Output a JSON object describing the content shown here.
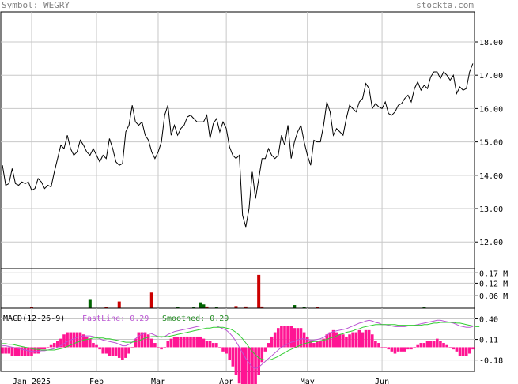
{
  "header": {
    "symbol_label": "Symbol: WEGRY",
    "site": "stockta.com"
  },
  "chart_data": [
    {
      "type": "line",
      "panel": "price",
      "ylim": [
        11.2,
        18.9
      ],
      "yticks": [
        "18.00",
        "17.00",
        "16.00",
        "15.00",
        "14.00",
        "13.00",
        "12.00"
      ],
      "ytick_values": [
        18,
        17,
        16,
        15,
        14,
        13,
        12
      ],
      "grid": true,
      "series": [
        {
          "values": [
            14.3,
            13.7,
            13.75,
            14.2,
            13.75,
            13.7,
            13.8,
            13.75,
            13.8,
            13.55,
            13.6,
            13.9,
            13.8,
            13.6,
            13.7,
            13.65,
            14.1,
            14.5,
            14.9,
            14.8,
            15.2,
            14.8,
            14.6,
            14.7,
            15.05,
            14.9,
            14.7,
            14.6,
            14.8,
            14.6,
            14.4,
            14.6,
            14.5,
            15.1,
            14.8,
            14.4,
            14.3,
            14.35,
            15.3,
            15.5,
            16.1,
            15.6,
            15.5,
            15.6,
            15.2,
            15.05,
            14.7,
            14.5,
            14.7,
            15.0,
            15.8,
            16.1,
            15.2,
            15.5,
            15.2,
            15.4,
            15.5,
            15.75,
            15.8,
            15.7,
            15.6,
            15.6,
            15.6,
            15.8,
            15.1,
            15.55,
            15.7,
            15.3,
            15.6,
            15.4,
            14.85,
            14.6,
            14.5,
            14.6,
            12.8,
            12.45,
            13.0,
            14.1,
            13.3,
            13.9,
            14.5,
            14.5,
            14.8,
            14.6,
            14.5,
            14.6,
            15.2,
            14.9,
            15.5,
            14.5,
            15.0,
            15.3,
            15.5,
            15.0,
            14.6,
            14.3,
            15.05,
            15.0,
            15.0,
            15.5,
            16.2,
            15.9,
            15.2,
            15.4,
            15.3,
            15.2,
            15.7,
            16.1,
            16.0,
            15.9,
            16.2,
            16.3,
            16.75,
            16.6,
            16.0,
            16.15,
            16.05,
            16.0,
            16.2,
            15.85,
            15.8,
            15.9,
            16.1,
            16.15,
            16.3,
            16.4,
            16.2,
            16.6,
            16.8,
            16.55,
            16.7,
            16.6,
            16.95,
            17.1,
            17.1,
            16.9,
            17.1,
            17.0,
            16.85,
            17.0,
            16.45,
            16.65,
            16.55,
            16.6,
            17.1,
            17.35
          ]
        }
      ]
    },
    {
      "type": "bar",
      "panel": "volume",
      "ylim": [
        0,
        0.19
      ],
      "yticks": [
        "0.17 M",
        "0.12 M",
        "0.06 M"
      ],
      "ytick_values": [
        0.17,
        0.12,
        0.06
      ],
      "colors": {
        "up": "#006400",
        "down": "#CC0000"
      },
      "bars": [
        {
          "i": 9,
          "v": 0.005,
          "dir": "down"
        },
        {
          "i": 27,
          "v": 0.04,
          "dir": "up"
        },
        {
          "i": 32,
          "v": 0.005,
          "dir": "down"
        },
        {
          "i": 36,
          "v": 0.032,
          "dir": "down"
        },
        {
          "i": 46,
          "v": 0.075,
          "dir": "down"
        },
        {
          "i": 54,
          "v": 0.005,
          "dir": "up"
        },
        {
          "i": 59,
          "v": 0.004,
          "dir": "up"
        },
        {
          "i": 61,
          "v": 0.028,
          "dir": "up"
        },
        {
          "i": 62,
          "v": 0.018,
          "dir": "up"
        },
        {
          "i": 63,
          "v": 0.008,
          "dir": "down"
        },
        {
          "i": 66,
          "v": 0.005,
          "dir": "up"
        },
        {
          "i": 72,
          "v": 0.01,
          "dir": "down"
        },
        {
          "i": 75,
          "v": 0.008,
          "dir": "down"
        },
        {
          "i": 79,
          "v": 0.16,
          "dir": "down"
        },
        {
          "i": 80,
          "v": 0.008,
          "dir": "down"
        },
        {
          "i": 90,
          "v": 0.015,
          "dir": "up"
        },
        {
          "i": 93,
          "v": 0.005,
          "dir": "up"
        },
        {
          "i": 97,
          "v": 0.004,
          "dir": "down"
        },
        {
          "i": 130,
          "v": 0.004,
          "dir": "up"
        }
      ]
    },
    {
      "type": "line",
      "panel": "macd",
      "title": "MACD(12-26-9)",
      "fast_label": "FastLine: 0.29",
      "smooth_label": "Smoothed: 0.29",
      "ylim": [
        -0.34,
        0.55
      ],
      "yticks": [
        "0.40",
        "0.11",
        "-0.18"
      ],
      "ytick_values": [
        0.4,
        0.11,
        -0.18
      ],
      "colors": {
        "fast": "#BA55D3",
        "smooth": "#32CD32",
        "hist": "#FF1493"
      },
      "fast": [
        0.02,
        0.02,
        0.01,
        0.0,
        -0.01,
        -0.02,
        -0.03,
        -0.04,
        -0.05,
        -0.06,
        -0.06,
        -0.06,
        -0.05,
        -0.05,
        -0.04,
        -0.03,
        -0.02,
        0.0,
        0.02,
        0.05,
        0.08,
        0.1,
        0.12,
        0.14,
        0.15,
        0.16,
        0.16,
        0.16,
        0.15,
        0.14,
        0.12,
        0.1,
        0.09,
        0.08,
        0.07,
        0.06,
        0.04,
        0.02,
        0.02,
        0.04,
        0.07,
        0.12,
        0.16,
        0.18,
        0.2,
        0.2,
        0.19,
        0.17,
        0.15,
        0.14,
        0.15,
        0.18,
        0.2,
        0.22,
        0.23,
        0.24,
        0.25,
        0.26,
        0.27,
        0.28,
        0.29,
        0.3,
        0.3,
        0.3,
        0.3,
        0.3,
        0.3,
        0.28,
        0.26,
        0.24,
        0.2,
        0.15,
        0.08,
        0.0,
        -0.08,
        -0.16,
        -0.22,
        -0.28,
        -0.3,
        -0.28,
        -0.24,
        -0.2,
        -0.16,
        -0.12,
        -0.08,
        -0.04,
        0.0,
        0.02,
        0.05,
        0.07,
        0.08,
        0.1,
        0.12,
        0.12,
        0.11,
        0.1,
        0.1,
        0.11,
        0.12,
        0.14,
        0.17,
        0.2,
        0.22,
        0.23,
        0.24,
        0.25,
        0.26,
        0.28,
        0.3,
        0.32,
        0.34,
        0.35,
        0.37,
        0.38,
        0.37,
        0.35,
        0.34,
        0.32,
        0.32,
        0.31,
        0.3,
        0.29,
        0.29,
        0.29,
        0.29,
        0.3,
        0.3,
        0.31,
        0.32,
        0.33,
        0.34,
        0.35,
        0.36,
        0.37,
        0.38,
        0.38,
        0.37,
        0.36,
        0.35,
        0.34,
        0.32,
        0.3,
        0.29,
        0.28,
        0.28,
        0.29
      ],
      "smooth": [
        0.05,
        0.05,
        0.04,
        0.04,
        0.03,
        0.02,
        0.01,
        0.0,
        -0.01,
        -0.02,
        -0.03,
        -0.03,
        -0.04,
        -0.04,
        -0.04,
        -0.04,
        -0.04,
        -0.03,
        -0.02,
        -0.01,
        0.01,
        0.03,
        0.05,
        0.07,
        0.08,
        0.1,
        0.11,
        0.12,
        0.13,
        0.13,
        0.13,
        0.13,
        0.12,
        0.12,
        0.11,
        0.1,
        0.09,
        0.08,
        0.07,
        0.07,
        0.07,
        0.08,
        0.09,
        0.11,
        0.13,
        0.14,
        0.15,
        0.15,
        0.15,
        0.15,
        0.15,
        0.15,
        0.16,
        0.17,
        0.18,
        0.19,
        0.2,
        0.21,
        0.22,
        0.23,
        0.24,
        0.25,
        0.26,
        0.27,
        0.27,
        0.28,
        0.28,
        0.28,
        0.28,
        0.27,
        0.26,
        0.24,
        0.21,
        0.17,
        0.12,
        0.06,
        0.0,
        -0.06,
        -0.11,
        -0.15,
        -0.17,
        -0.18,
        -0.18,
        -0.17,
        -0.15,
        -0.13,
        -0.1,
        -0.08,
        -0.05,
        -0.03,
        -0.01,
        0.01,
        0.03,
        0.05,
        0.06,
        0.07,
        0.08,
        0.08,
        0.09,
        0.1,
        0.11,
        0.13,
        0.14,
        0.16,
        0.18,
        0.19,
        0.21,
        0.22,
        0.23,
        0.25,
        0.26,
        0.28,
        0.29,
        0.3,
        0.31,
        0.32,
        0.32,
        0.32,
        0.32,
        0.32,
        0.32,
        0.32,
        0.31,
        0.31,
        0.31,
        0.31,
        0.31,
        0.31,
        0.31,
        0.31,
        0.32,
        0.32,
        0.33,
        0.34,
        0.34,
        0.35,
        0.35,
        0.35,
        0.35,
        0.35,
        0.34,
        0.34,
        0.33,
        0.32,
        0.31,
        0.3,
        0.29,
        0.29
      ]
    }
  ],
  "x_axis": {
    "months": [
      {
        "label": "Jan 2025",
        "i": 9
      },
      {
        "label": "Feb",
        "i": 29
      },
      {
        "label": "Mar",
        "i": 48
      },
      {
        "label": "Apr",
        "i": 69
      },
      {
        "label": "May",
        "i": 94
      },
      {
        "label": "Jun",
        "i": 117
      }
    ],
    "count": 146
  }
}
